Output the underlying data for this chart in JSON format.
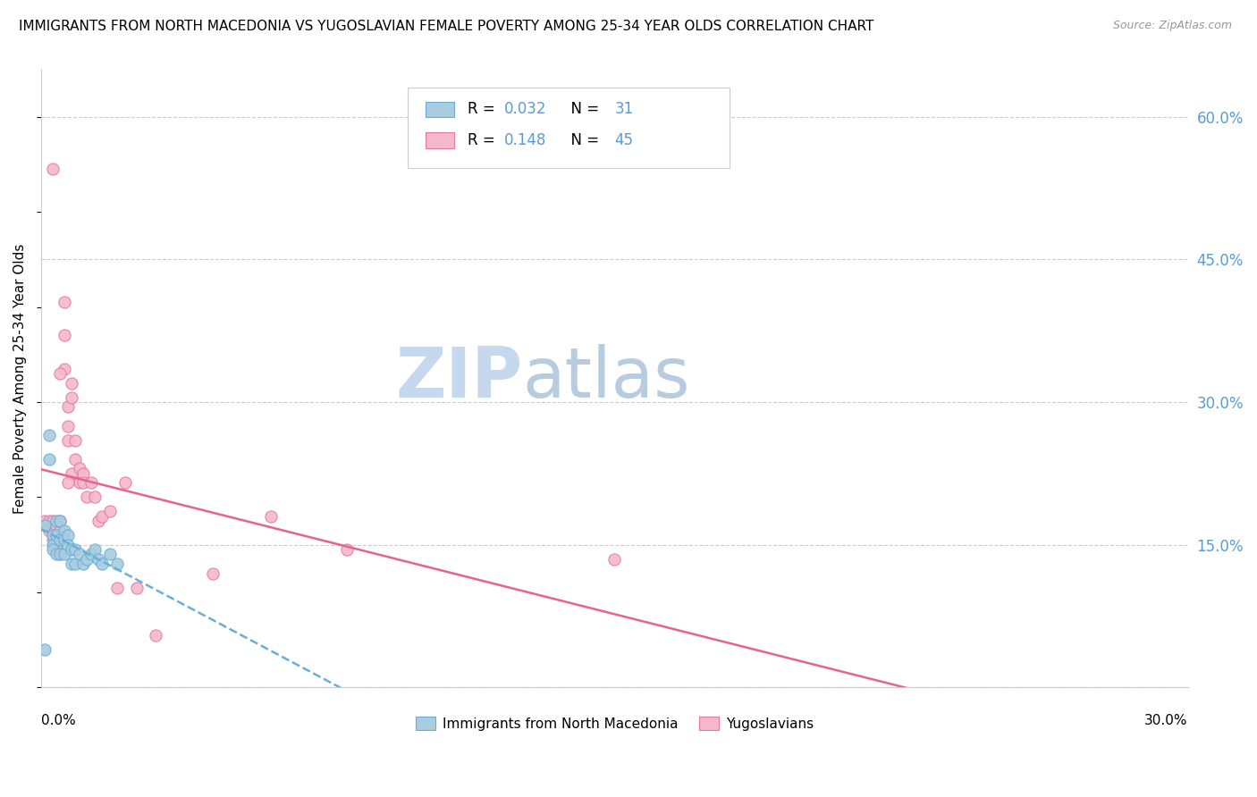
{
  "title": "IMMIGRANTS FROM NORTH MACEDONIA VS YUGOSLAVIAN FEMALE POVERTY AMONG 25-34 YEAR OLDS CORRELATION CHART",
  "source": "Source: ZipAtlas.com",
  "ylabel": "Female Poverty Among 25-34 Year Olds",
  "ytick_vals": [
    0.0,
    0.15,
    0.3,
    0.45,
    0.6
  ],
  "ytick_labels": [
    "",
    "15.0%",
    "30.0%",
    "45.0%",
    "60.0%"
  ],
  "xlim": [
    0.0,
    0.3
  ],
  "ylim": [
    0.0,
    0.65
  ],
  "legend1_R": "0.032",
  "legend1_N": "31",
  "legend2_R": "0.148",
  "legend2_N": "45",
  "legend1_label": "Immigrants from North Macedonia",
  "legend2_label": "Yugoslavians",
  "color_blue_fill": "#a8cce0",
  "color_blue_edge": "#6aaed6",
  "color_blue_line": "#6aaed6",
  "color_pink_fill": "#f4b8cb",
  "color_pink_edge": "#e87a9f",
  "color_pink_line": "#e8638a",
  "color_axis_blue": "#5b9bd5",
  "color_grid": "#cccccc",
  "watermark_zip": "ZIP",
  "watermark_atlas": "atlas",
  "watermark_color_zip": "#c8d8ee",
  "watermark_color_atlas": "#b0c8e8",
  "blue_x": [
    0.001,
    0.002,
    0.002,
    0.003,
    0.003,
    0.003,
    0.004,
    0.004,
    0.004,
    0.005,
    0.005,
    0.005,
    0.006,
    0.006,
    0.006,
    0.007,
    0.007,
    0.008,
    0.008,
    0.009,
    0.009,
    0.01,
    0.011,
    0.012,
    0.013,
    0.014,
    0.015,
    0.016,
    0.018,
    0.02,
    0.001
  ],
  "blue_y": [
    0.17,
    0.265,
    0.24,
    0.16,
    0.15,
    0.145,
    0.175,
    0.16,
    0.14,
    0.175,
    0.155,
    0.14,
    0.165,
    0.155,
    0.14,
    0.16,
    0.15,
    0.145,
    0.13,
    0.145,
    0.13,
    0.14,
    0.13,
    0.135,
    0.14,
    0.145,
    0.135,
    0.13,
    0.14,
    0.13,
    0.04
  ],
  "pink_x": [
    0.001,
    0.002,
    0.002,
    0.003,
    0.003,
    0.003,
    0.004,
    0.004,
    0.004,
    0.005,
    0.005,
    0.005,
    0.005,
    0.006,
    0.006,
    0.006,
    0.007,
    0.007,
    0.007,
    0.008,
    0.008,
    0.008,
    0.009,
    0.009,
    0.01,
    0.01,
    0.011,
    0.011,
    0.012,
    0.013,
    0.014,
    0.015,
    0.016,
    0.018,
    0.02,
    0.022,
    0.025,
    0.03,
    0.045,
    0.06,
    0.08,
    0.15,
    0.003,
    0.005,
    0.007
  ],
  "pink_y": [
    0.175,
    0.175,
    0.165,
    0.175,
    0.165,
    0.155,
    0.17,
    0.16,
    0.15,
    0.175,
    0.165,
    0.155,
    0.14,
    0.405,
    0.37,
    0.335,
    0.295,
    0.275,
    0.26,
    0.32,
    0.305,
    0.225,
    0.26,
    0.24,
    0.23,
    0.215,
    0.225,
    0.215,
    0.2,
    0.215,
    0.2,
    0.175,
    0.18,
    0.185,
    0.105,
    0.215,
    0.105,
    0.055,
    0.12,
    0.18,
    0.145,
    0.135,
    0.545,
    0.33,
    0.215
  ]
}
